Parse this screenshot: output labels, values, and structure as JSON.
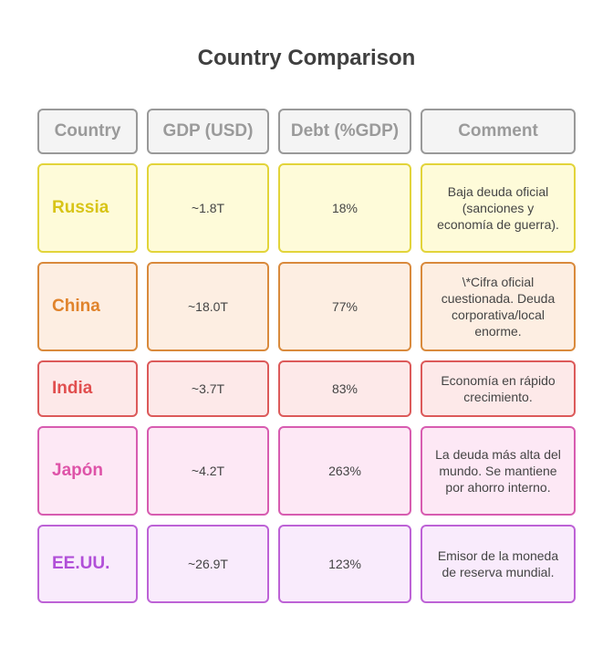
{
  "title": "Country Comparison",
  "headers": {
    "country": "Country",
    "gdp": "GDP (USD)",
    "debt": "Debt (%GDP)",
    "comment": "Comment"
  },
  "rows": [
    {
      "country": "Russia",
      "gdp": "~1.8T",
      "debt": "18%",
      "comment": "Baja deuda oficial (sanciones y economía de guerra).",
      "colors": {
        "text": "#d8c417",
        "border": "#e2d43a",
        "bg": "#fefbd9"
      }
    },
    {
      "country": "China",
      "gdp": "~18.0T",
      "debt": "77%",
      "comment": "\\*Cifra oficial cuestionada. Deuda corporativa/local enorme.",
      "colors": {
        "text": "#e0832b",
        "border": "#d98a3c",
        "bg": "#fdeee2"
      }
    },
    {
      "country": "India",
      "gdp": "~3.7T",
      "debt": "83%",
      "comment": "Economía en rápido crecimiento.",
      "colors": {
        "text": "#e14f4f",
        "border": "#dc5a5a",
        "bg": "#fde9e9"
      }
    },
    {
      "country": "Japón",
      "gdp": "~4.2T",
      "debt": "263%",
      "comment": "La deuda más alta del mundo. Se mantiene por ahorro interno.",
      "colors": {
        "text": "#de53a8",
        "border": "#d75cb0",
        "bg": "#fde8f5"
      }
    },
    {
      "country": "EE.UU.",
      "gdp": "~26.9T",
      "debt": "123%",
      "comment": "Emisor de la moneda de reserva mundial.",
      "colors": {
        "text": "#b14fd8",
        "border": "#bd62d6",
        "bg": "#f9ebfc"
      }
    }
  ]
}
